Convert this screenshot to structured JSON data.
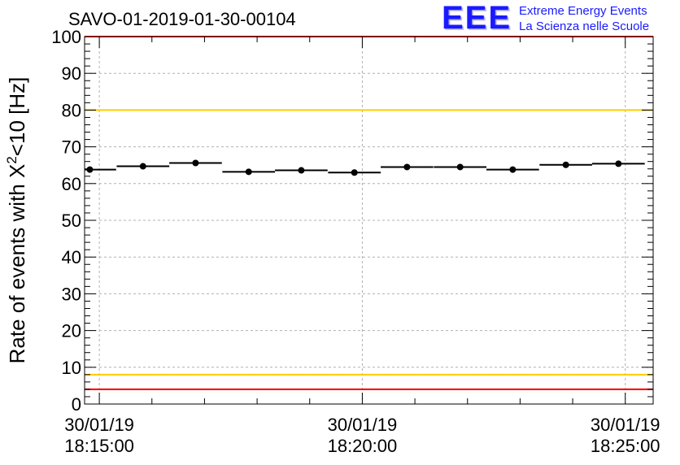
{
  "chart_data": {
    "type": "scatter",
    "title": "SAVO-01-2019-01-30-00104",
    "ylabel_prefix": "Rate of events with X",
    "ylabel_sup": "2",
    "ylabel_suffix": "<10 [Hz]",
    "ylim": [
      0,
      100
    ],
    "yticks": [
      "0",
      "10",
      "20",
      "30",
      "40",
      "50",
      "60",
      "70",
      "80",
      "90",
      "100"
    ],
    "xrange_minutes": [
      -0.28,
      10.53
    ],
    "xticks": [
      {
        "minute": 0,
        "date": "30/01/19",
        "time": "18:15:00"
      },
      {
        "minute": 5,
        "date": "30/01/19",
        "time": "18:20:00"
      },
      {
        "minute": 10,
        "date": "30/01/19",
        "time": "18:25:00"
      }
    ],
    "series": [
      {
        "name": "rate",
        "x_minutes": [
          -0.18,
          0.83,
          1.83,
          2.84,
          3.84,
          4.85,
          5.85,
          6.86,
          7.86,
          8.87,
          9.87
        ],
        "x_halfwidth": 0.5,
        "values": [
          63.8,
          64.7,
          65.6,
          63.2,
          63.6,
          63.0,
          64.5,
          64.5,
          63.8,
          65.1,
          65.4
        ],
        "errors": [
          0.5,
          0.5,
          0.5,
          0.5,
          0.5,
          0.5,
          0.5,
          0.5,
          0.5,
          0.5,
          0.5
        ]
      }
    ],
    "reference_lines": [
      {
        "name": "upper-red",
        "y": 100,
        "color": "#ff0000"
      },
      {
        "name": "upper-yellow",
        "y": 80,
        "color": "#ffcc00"
      },
      {
        "name": "lower-yellow",
        "y": 8,
        "color": "#ffcc00"
      },
      {
        "name": "lower-red",
        "y": 4,
        "color": "#ff0000"
      }
    ]
  },
  "logo": {
    "mark": "EEE",
    "line1": "Extreme Energy Events",
    "line2": "La Scienza nelle Scuole"
  }
}
